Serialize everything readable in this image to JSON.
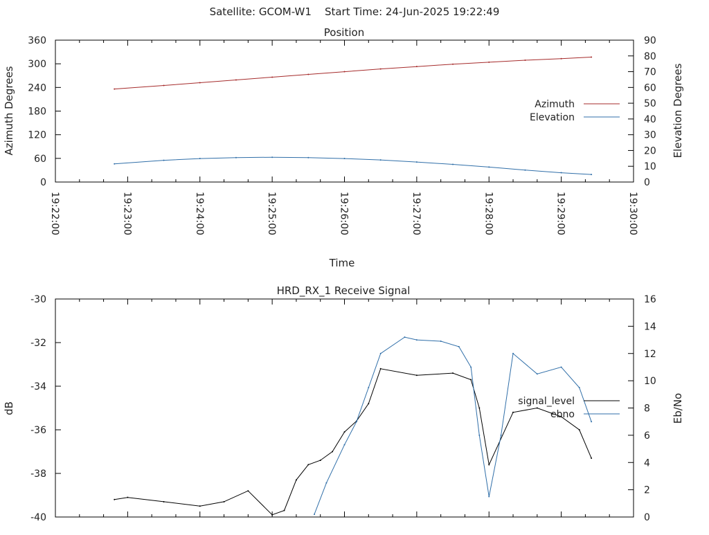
{
  "header": {
    "title": "Satellite: GCOM-W1    Start Time: 24-Jun-2025 19:22:49"
  },
  "chart_data": [
    {
      "type": "line",
      "title": "Position",
      "xlabel": "Time",
      "ylabel": "Azimuth Degrees",
      "y2label": "Elevation Degrees",
      "xlim": [
        "19:22:00",
        "19:30:00"
      ],
      "ylim": [
        0,
        360
      ],
      "y2lim": [
        0,
        90
      ],
      "xticks": [
        "19:22:00",
        "19:23:00",
        "19:24:00",
        "19:25:00",
        "19:26:00",
        "19:27:00",
        "19:28:00",
        "19:29:00",
        "19:30:00"
      ],
      "yticks": [
        "0",
        "60",
        "120",
        "180",
        "240",
        "300",
        "360"
      ],
      "y2ticks": [
        "0",
        "10",
        "20",
        "30",
        "40",
        "50",
        "60",
        "70",
        "80",
        "90"
      ],
      "legend_position": "right",
      "x": [
        "19:22:49",
        "19:23:30",
        "19:24:00",
        "19:24:30",
        "19:25:00",
        "19:25:30",
        "19:26:00",
        "19:26:30",
        "19:27:00",
        "19:27:30",
        "19:28:00",
        "19:28:30",
        "19:29:00",
        "19:29:25"
      ],
      "series": [
        {
          "name": "Azimuth",
          "axis": "left",
          "color": "#a52a2a",
          "values": [
            236,
            245,
            252,
            259,
            266,
            273,
            280,
            287,
            293,
            299,
            304,
            309,
            313,
            317
          ]
        },
        {
          "name": "Elevation",
          "axis": "right",
          "color": "#2f6ea8",
          "values": [
            11.5,
            13.8,
            14.9,
            15.5,
            15.7,
            15.5,
            14.9,
            14.0,
            12.7,
            11.2,
            9.5,
            7.6,
            5.9,
            4.8
          ]
        }
      ]
    },
    {
      "type": "line",
      "title": "HRD_RX_1 Receive Signal",
      "xlabel": "",
      "ylabel": "dB",
      "y2label": "Eb/No",
      "xlim": [
        "19:22:00",
        "19:30:00"
      ],
      "ylim": [
        -40,
        -30
      ],
      "y2lim": [
        0,
        16
      ],
      "yticks": [
        "-40",
        "-38",
        "-36",
        "-34",
        "-32",
        "-30"
      ],
      "y2ticks": [
        "0",
        "2",
        "4",
        "6",
        "8",
        "10",
        "12",
        "14",
        "16"
      ],
      "legend_position": "right",
      "series": [
        {
          "name": "signal_level",
          "axis": "left",
          "color": "#000000",
          "x": [
            "19:22:49",
            "19:23:00",
            "19:23:30",
            "19:24:00",
            "19:24:20",
            "19:24:40",
            "19:25:00",
            "19:25:10",
            "19:25:20",
            "19:25:30",
            "19:25:40",
            "19:25:50",
            "19:26:00",
            "19:26:10",
            "19:26:20",
            "19:26:30",
            "19:27:00",
            "19:27:30",
            "19:27:45",
            "19:27:52",
            "19:28:00",
            "19:28:20",
            "19:28:40",
            "19:29:00",
            "19:29:15",
            "19:29:25"
          ],
          "values": [
            -39.2,
            -39.1,
            -39.3,
            -39.5,
            -39.3,
            -38.8,
            -39.9,
            -39.7,
            -38.3,
            -37.6,
            -37.4,
            -37.0,
            -36.1,
            -35.6,
            -34.8,
            -33.2,
            -33.5,
            -33.4,
            -33.7,
            -35.0,
            -37.6,
            -35.2,
            -35.0,
            -35.4,
            -36.0,
            -37.3
          ]
        },
        {
          "name": "ebno",
          "axis": "right",
          "color": "#2f6ea8",
          "x": [
            "19:25:35",
            "19:25:45",
            "19:26:00",
            "19:26:10",
            "19:26:20",
            "19:26:30",
            "19:26:50",
            "19:27:00",
            "19:27:20",
            "19:27:35",
            "19:27:45",
            "19:27:52",
            "19:28:00",
            "19:28:10",
            "19:28:20",
            "19:28:40",
            "19:29:00",
            "19:29:15",
            "19:29:25"
          ],
          "values": [
            0.2,
            2.5,
            5.3,
            7.0,
            9.5,
            12.0,
            13.2,
            13.0,
            12.9,
            12.5,
            11.0,
            6.0,
            1.5,
            6.0,
            12.0,
            10.5,
            11.0,
            9.5,
            7.0
          ]
        }
      ]
    }
  ]
}
